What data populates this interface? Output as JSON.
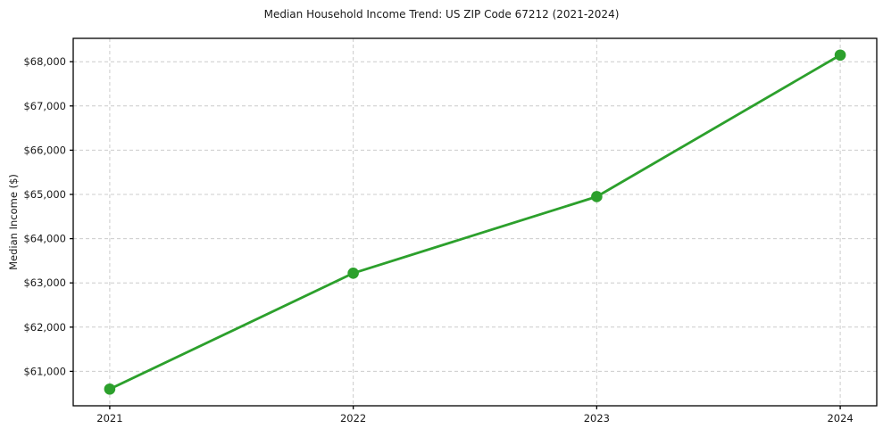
{
  "chart_data": {
    "type": "line",
    "title": "Median Household Income Trend: US ZIP Code 67212 (2021-2024)",
    "xlabel": "",
    "ylabel": "Median Income ($)",
    "categories": [
      "2021",
      "2022",
      "2023",
      "2024"
    ],
    "x": [
      2021,
      2022,
      2023,
      2024
    ],
    "series": [
      {
        "name": "Median Household Income",
        "values": [
          60600,
          63220,
          64950,
          68150
        ],
        "color": "#2ca02c",
        "marker": "circle"
      }
    ],
    "xlim": [
      2020.85,
      2024.15
    ],
    "ylim": [
      60222,
      68528
    ],
    "y_ticks": [
      61000,
      62000,
      63000,
      64000,
      65000,
      66000,
      67000,
      68000
    ],
    "y_tick_labels": [
      "$61,000",
      "$62,000",
      "$63,000",
      "$64,000",
      "$65,000",
      "$66,000",
      "$67,000",
      "$68,000"
    ],
    "grid": true,
    "grid_style": "dashed",
    "legend_position": "none"
  },
  "colors": {
    "line": "#2ca02c",
    "grid": "#cccccc",
    "axis": "#000000",
    "text": "#1a1a1a",
    "background": "#ffffff"
  }
}
